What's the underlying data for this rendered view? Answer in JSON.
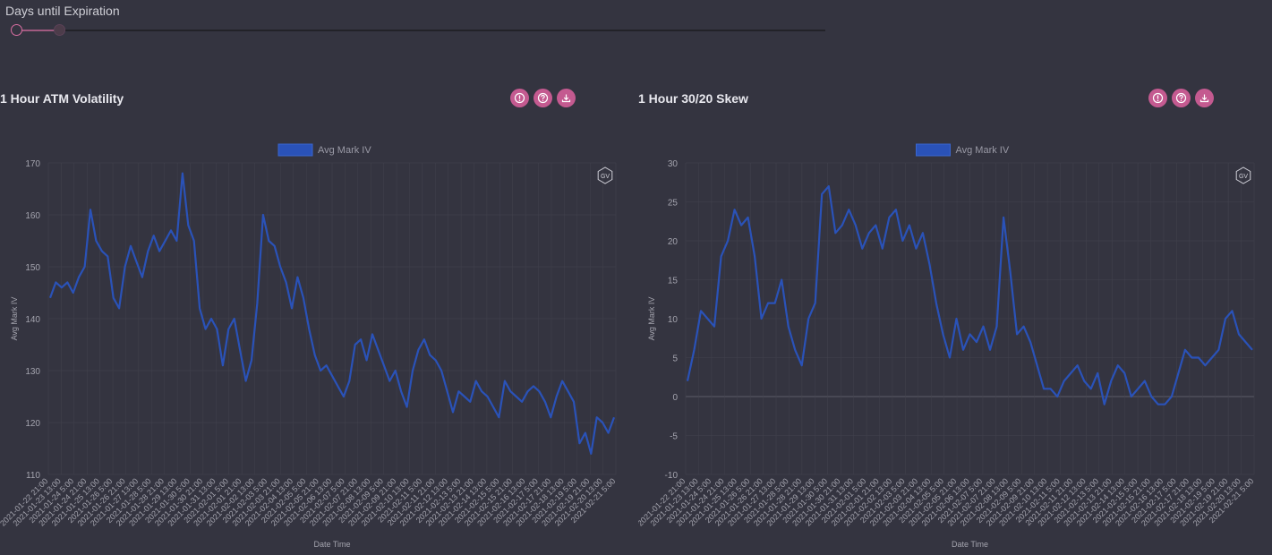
{
  "slider": {
    "label": "Days until Expiration",
    "range_start_fraction": 0.0,
    "range_end_fraction": 0.053
  },
  "panels": [
    {
      "title": "1 Hour ATM Volatility",
      "icons": [
        "info-icon",
        "help-icon",
        "download-icon"
      ]
    },
    {
      "title": "1 Hour 30/20 Skew",
      "icons": [
        "info-icon",
        "help-icon",
        "download-icon"
      ]
    }
  ],
  "colors": {
    "background": "#343440",
    "accent": "#c45a90",
    "series": "#2a52b8",
    "grid": "#43434e"
  },
  "chart_data": [
    {
      "type": "line",
      "legend": [
        "Avg Mark IV"
      ],
      "legend_position": "top",
      "xlabel": "Date Time",
      "ylabel": "Avg Mark IV",
      "ylim": [
        110,
        170
      ],
      "yticks": [
        110,
        120,
        130,
        140,
        150,
        160,
        170
      ],
      "grid": true,
      "badge": "GV",
      "x_ticks": [
        "2021-01-22 21:00",
        "2021-01-23 13:00",
        "2021-01-24 5:00",
        "2021-01-24 21:00",
        "2021-01-25 13:00",
        "2021-01-26 5:00",
        "2021-01-26 21:00",
        "2021-01-27 13:00",
        "2021-01-28 5:00",
        "2021-01-28 21:00",
        "2021-01-29 13:00",
        "2021-01-30 5:00",
        "2021-01-30 21:00",
        "2021-01-31 13:00",
        "2021-02-01 5:00",
        "2021-02-01 21:00",
        "2021-02-02 13:00",
        "2021-02-03 5:00",
        "2021-02-03 21:00",
        "2021-02-04 13:00",
        "2021-02-05 5:00",
        "2021-02-05 21:00",
        "2021-02-06 13:00",
        "2021-02-07 5:00",
        "2021-02-07 21:00",
        "2021-02-08 13:00",
        "2021-02-09 5:00",
        "2021-02-09 21:00",
        "2021-02-10 13:00",
        "2021-02-11 5:00",
        "2021-02-11 21:00",
        "2021-02-12 13:00",
        "2021-02-13 5:00",
        "2021-02-13 21:00",
        "2021-02-14 13:00",
        "2021-02-15 5:00",
        "2021-02-15 21:00",
        "2021-02-16 13:00",
        "2021-02-17 5:00",
        "2021-02-17 21:00",
        "2021-02-18 13:00",
        "2021-02-19 5:00",
        "2021-02-19 21:00",
        "2021-02-20 13:00",
        "2021-02-21 5:00"
      ],
      "series": [
        {
          "name": "Avg Mark IV",
          "values": [
            144,
            147,
            146,
            147,
            145,
            148,
            150,
            161,
            155,
            153,
            152,
            144,
            142,
            150,
            154,
            151,
            148,
            153,
            156,
            153,
            155,
            157,
            155,
            168,
            158,
            155,
            142,
            138,
            140,
            138,
            131,
            138,
            140,
            134,
            128,
            132,
            143,
            160,
            155,
            154,
            150,
            147,
            142,
            148,
            144,
            138,
            133,
            130,
            131,
            129,
            127,
            125,
            128,
            135,
            136,
            132,
            137,
            134,
            131,
            128,
            130,
            126,
            123,
            130,
            134,
            136,
            133,
            132,
            130,
            126,
            122,
            126,
            125,
            124,
            128,
            126,
            125,
            123,
            121,
            128,
            126,
            125,
            124,
            126,
            127,
            126,
            124,
            121,
            125,
            128,
            126,
            124,
            116,
            118,
            114,
            121,
            120,
            118,
            121
          ]
        }
      ]
    },
    {
      "type": "line",
      "legend": [
        "Avg Mark IV"
      ],
      "legend_position": "top",
      "xlabel": "Date Time",
      "ylabel": "Avg Mark IV",
      "ylim": [
        -10,
        30
      ],
      "yticks": [
        -10,
        -5,
        0,
        5,
        10,
        15,
        20,
        25,
        30
      ],
      "grid": true,
      "badge": "GV",
      "x_ticks": [
        "2021-01-22 21:00",
        "2021-01-23 13:00",
        "2021-01-24 5:00",
        "2021-01-24 21:00",
        "2021-01-25 13:00",
        "2021-01-26 5:00",
        "2021-01-26 21:00",
        "2021-01-27 13:00",
        "2021-01-28 5:00",
        "2021-01-28 21:00",
        "2021-01-29 13:00",
        "2021-01-30 5:00",
        "2021-01-30 21:00",
        "2021-01-31 13:00",
        "2021-02-01 5:00",
        "2021-02-01 21:00",
        "2021-02-02 13:00",
        "2021-02-03 5:00",
        "2021-02-03 21:00",
        "2021-02-04 13:00",
        "2021-02-05 5:00",
        "2021-02-05 21:00",
        "2021-02-06 13:00",
        "2021-02-07 5:00",
        "2021-02-07 21:00",
        "2021-02-08 13:00",
        "2021-02-09 5:00",
        "2021-02-09 21:00",
        "2021-02-10 13:00",
        "2021-02-11 5:00",
        "2021-02-11 21:00",
        "2021-02-12 13:00",
        "2021-02-13 5:00",
        "2021-02-13 21:00",
        "2021-02-14 13:00",
        "2021-02-15 5:00",
        "2021-02-15 21:00",
        "2021-02-16 13:00",
        "2021-02-17 5:00",
        "2021-02-17 21:00",
        "2021-02-18 13:00",
        "2021-02-19 5:00",
        "2021-02-19 21:00",
        "2021-02-20 13:00",
        "2021-02-21 5:00"
      ],
      "series": [
        {
          "name": "Avg Mark IV",
          "values": [
            2,
            6,
            11,
            10,
            9,
            18,
            20,
            24,
            22,
            23,
            18,
            10,
            12,
            12,
            15,
            9,
            6,
            4,
            10,
            12,
            26,
            27,
            21,
            22,
            24,
            22,
            19,
            21,
            22,
            19,
            23,
            24,
            20,
            22,
            19,
            21,
            17,
            12,
            8,
            5,
            10,
            6,
            8,
            7,
            9,
            6,
            9,
            23,
            16,
            8,
            9,
            7,
            4,
            1,
            1,
            0,
            2,
            3,
            4,
            2,
            1,
            3,
            -1,
            2,
            4,
            3,
            0,
            1,
            2,
            0,
            -1,
            -1,
            0,
            3,
            6,
            5,
            5,
            4,
            5,
            6,
            10,
            11,
            8,
            7,
            6
          ]
        }
      ]
    }
  ]
}
